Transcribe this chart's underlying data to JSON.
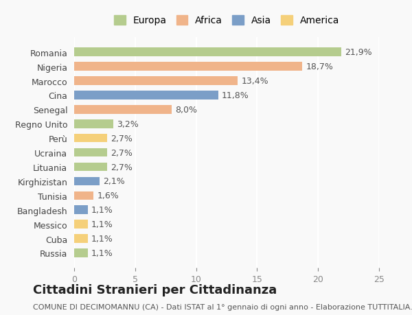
{
  "countries": [
    "Romania",
    "Nigeria",
    "Marocco",
    "Cina",
    "Senegal",
    "Regno Unito",
    "Perù",
    "Ucraina",
    "Lituania",
    "Kirghizistan",
    "Tunisia",
    "Bangladesh",
    "Messico",
    "Cuba",
    "Russia"
  ],
  "values": [
    21.9,
    18.7,
    13.4,
    11.8,
    8.0,
    3.2,
    2.7,
    2.7,
    2.7,
    2.1,
    1.6,
    1.1,
    1.1,
    1.1,
    1.1
  ],
  "labels": [
    "21,9%",
    "18,7%",
    "13,4%",
    "11,8%",
    "8,0%",
    "3,2%",
    "2,7%",
    "2,7%",
    "2,7%",
    "2,1%",
    "1,6%",
    "1,1%",
    "1,1%",
    "1,1%",
    "1,1%"
  ],
  "continents": [
    "Europa",
    "Africa",
    "Africa",
    "Asia",
    "Africa",
    "Europa",
    "America",
    "Europa",
    "Europa",
    "Asia",
    "Africa",
    "Asia",
    "America",
    "America",
    "Europa"
  ],
  "continent_colors": {
    "Europa": "#b5cc8e",
    "Africa": "#f0b48a",
    "Asia": "#7b9ec7",
    "America": "#f5d07a"
  },
  "legend_order": [
    "Europa",
    "Africa",
    "Asia",
    "America"
  ],
  "xlim": [
    0,
    25
  ],
  "xticks": [
    0,
    5,
    10,
    15,
    20,
    25
  ],
  "title": "Cittadini Stranieri per Cittadinanza",
  "subtitle": "COMUNE DI DECIMOMANNU (CA) - Dati ISTAT al 1° gennaio di ogni anno - Elaborazione TUTTITALIA.IT",
  "background_color": "#f9f9f9",
  "grid_color": "#ffffff",
  "bar_height": 0.6,
  "label_fontsize": 9,
  "title_fontsize": 13,
  "subtitle_fontsize": 8
}
